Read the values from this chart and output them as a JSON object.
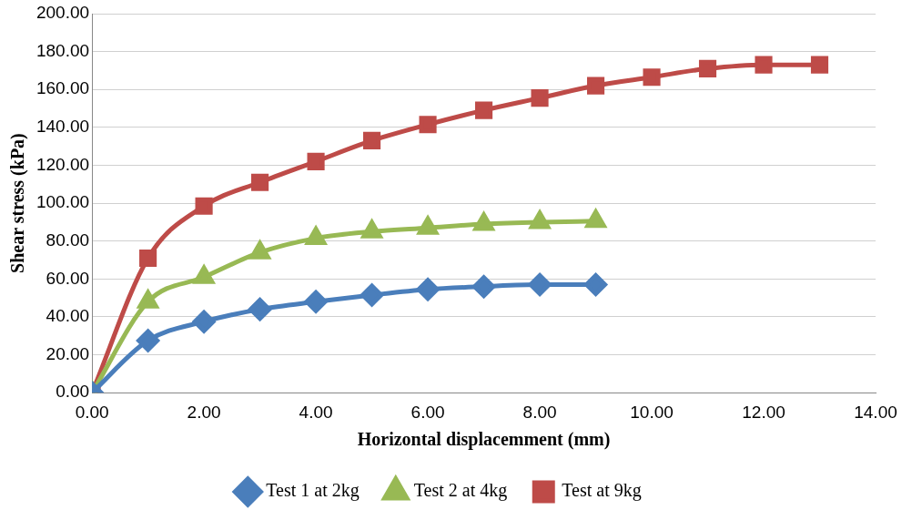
{
  "chart_data": {
    "type": "line",
    "xlabel": "Horizontal displacemment (mm)",
    "ylabel": "Shear stress (kPa)",
    "xlim": [
      0,
      14
    ],
    "xticks": [
      {
        "value": 0,
        "label": "0.00"
      },
      {
        "value": 2,
        "label": "2.00"
      },
      {
        "value": 4,
        "label": "4.00"
      },
      {
        "value": 6,
        "label": "6.00"
      },
      {
        "value": 8,
        "label": "8.00"
      },
      {
        "value": 10,
        "label": "10.00"
      },
      {
        "value": 12,
        "label": "12.00"
      },
      {
        "value": 14,
        "label": "14.00"
      }
    ],
    "ylim": [
      0,
      200
    ],
    "yticks": [
      {
        "value": 0,
        "label": "0.00"
      },
      {
        "value": 20,
        "label": "20.00"
      },
      {
        "value": 40,
        "label": "40.00"
      },
      {
        "value": 60,
        "label": "60.00"
      },
      {
        "value": 80,
        "label": "80.00"
      },
      {
        "value": 100,
        "label": "100.00"
      },
      {
        "value": 120,
        "label": "120.00"
      },
      {
        "value": 140,
        "label": "140.00"
      },
      {
        "value": 160,
        "label": "160.00"
      },
      {
        "value": 180,
        "label": "180.00"
      },
      {
        "value": 200,
        "label": "200.00"
      }
    ],
    "grid": "y",
    "legend": "bottom",
    "line_style": "solid",
    "series": [
      {
        "name": "Test 1 at 2kg",
        "color": "#4a7ebb",
        "marker": "diamond",
        "x": [
          0,
          1,
          2,
          3,
          4,
          5,
          6,
          7,
          8,
          9
        ],
        "values": [
          0,
          27.5,
          37.5,
          44,
          48,
          51.5,
          54.5,
          56,
          57,
          57
        ]
      },
      {
        "name": "Test 2 at 4kg",
        "color": "#98b954",
        "marker": "triangle",
        "x": [
          0,
          1,
          2,
          3,
          4,
          5,
          6,
          7,
          8,
          9
        ],
        "values": [
          0,
          48,
          61,
          74,
          81.5,
          85,
          87,
          89,
          90,
          90.5
        ]
      },
      {
        "name": "Test at 9kg",
        "color": "#be4b48",
        "marker": "square",
        "x": [
          0,
          1,
          2,
          3,
          4,
          5,
          6,
          7,
          8,
          9,
          10,
          11,
          12,
          13
        ],
        "values": [
          0,
          71,
          98.5,
          111,
          122,
          133,
          141.5,
          149,
          155.5,
          162,
          166.5,
          171,
          173,
          173
        ]
      }
    ]
  }
}
